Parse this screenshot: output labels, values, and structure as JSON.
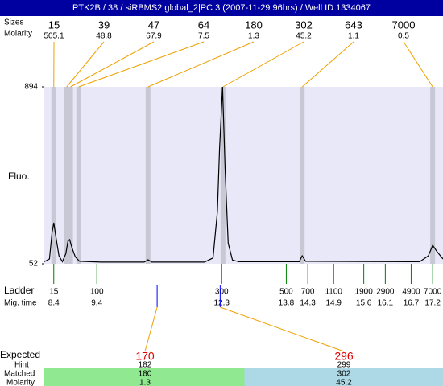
{
  "header": {
    "title": "PTK2B / 38 / siRBMS2 global_2|PC 3 (2007-11-29 96hrs) / Well ID 1334067"
  },
  "chart_data": {
    "type": "electropherogram",
    "y_label": "Fluo.",
    "ylim": [
      52,
      894
    ],
    "yticks": [
      52,
      894
    ],
    "xlim": [
      8.18,
      17.44
    ],
    "peaks": {
      "label_size": "Sizes",
      "label_molarity": "Molarity",
      "sizes": [
        15,
        39,
        47,
        64,
        180,
        302,
        643,
        7000
      ],
      "molarity": [
        505.1,
        48.8,
        67.9,
        7.5,
        1.3,
        45.2,
        1.1,
        0.5
      ],
      "times": [
        8.4,
        8.7,
        8.79,
        8.98,
        10.59,
        12.33,
        14.17,
        17.2
      ]
    },
    "trace": {
      "color": "#000000",
      "x": [
        8.18,
        8.3,
        8.36,
        8.4,
        8.45,
        8.52,
        8.6,
        8.68,
        8.73,
        8.77,
        8.82,
        8.9,
        9.0,
        9.5,
        10.5,
        10.59,
        10.68,
        11.9,
        12.1,
        12.2,
        12.25,
        12.32,
        12.38,
        12.45,
        12.55,
        12.7,
        14.1,
        14.17,
        14.25,
        16.9,
        17.1,
        17.2,
        17.3,
        17.44
      ],
      "y": [
        62,
        75,
        200,
        247,
        180,
        90,
        62,
        100,
        160,
        167,
        130,
        85,
        64,
        60,
        60,
        71,
        60,
        60,
        80,
        300,
        600,
        894,
        500,
        150,
        70,
        62,
        62,
        90,
        64,
        62,
        90,
        140,
        110,
        75
      ]
    },
    "ladder": {
      "label": "Ladder",
      "label_time": "Mig. time",
      "sizes": [
        15,
        100,
        300,
        500,
        700,
        1100,
        1900,
        2900,
        4900,
        7000
      ],
      "times": [
        8.4,
        9.4,
        12.3,
        13.8,
        14.3,
        14.9,
        15.6,
        16.1,
        16.7,
        17.2
      ]
    },
    "expected": {
      "label": "Expected",
      "label_hint": "Hint",
      "label_matched": "Matched",
      "label_molarity": "Molarity",
      "expected": [
        170,
        296
      ],
      "hint": [
        182,
        299
      ],
      "matched": [
        180,
        302
      ],
      "molarity": [
        1.3,
        45.2
      ],
      "colors": [
        "#90e890",
        "#add8e6"
      ]
    }
  }
}
